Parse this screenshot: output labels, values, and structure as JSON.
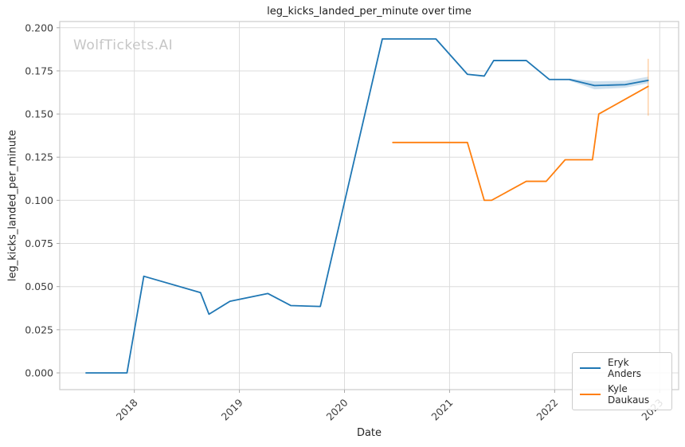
{
  "title": "leg_kicks_landed_per_minute over time",
  "watermark": "WolfTickets.AI",
  "legend": {
    "items": [
      {
        "label": "Eryk Anders",
        "color": "#1f77b4"
      },
      {
        "label": "Kyle Daukaus",
        "color": "#ff7f0e"
      }
    ]
  },
  "colors": {
    "grid": "#dcdcdc",
    "spine": "#cccccc",
    "tick": "#aaaaaa",
    "tick_label": "#3d3d3d",
    "background": "#ffffff"
  },
  "chart_data": {
    "type": "line",
    "title": "leg_kicks_landed_per_minute over time",
    "xlabel": "Date",
    "ylabel": "leg_kicks_landed_per_minute",
    "grid": true,
    "legend_position": "lower right",
    "xlim": [
      2017.29,
      2023.18
    ],
    "ylim": [
      -0.0097,
      0.2036
    ],
    "x_ticks": [
      2018,
      2019,
      2020,
      2021,
      2022,
      2023
    ],
    "y_ticks": [
      0.0,
      0.025,
      0.05,
      0.075,
      0.1,
      0.125,
      0.15,
      0.175,
      0.2
    ],
    "series": [
      {
        "name": "Eryk Anders",
        "color": "#1f77b4",
        "points": [
          [
            2017.54,
            0.0
          ],
          [
            2017.93,
            0.0
          ],
          [
            2018.09,
            0.056
          ],
          [
            2018.63,
            0.0465
          ],
          [
            2018.71,
            0.034
          ],
          [
            2018.91,
            0.0415
          ],
          [
            2019.27,
            0.046
          ],
          [
            2019.49,
            0.039
          ],
          [
            2019.77,
            0.0385
          ],
          [
            2020.36,
            0.1935
          ],
          [
            2020.87,
            0.1935
          ],
          [
            2021.17,
            0.173
          ],
          [
            2021.33,
            0.172
          ],
          [
            2021.42,
            0.181
          ],
          [
            2021.73,
            0.181
          ],
          [
            2021.95,
            0.17
          ],
          [
            2022.14,
            0.17
          ],
          [
            2022.38,
            0.1665
          ],
          [
            2022.67,
            0.167
          ],
          [
            2022.89,
            0.1695
          ]
        ],
        "ci_band": {
          "x": [
            2022.14,
            2022.38,
            2022.67,
            2022.89
          ],
          "upper": [
            0.1706,
            0.169,
            0.1692,
            0.1716
          ],
          "lower": [
            0.1694,
            0.1643,
            0.1652,
            0.1678
          ]
        }
      },
      {
        "name": "Kyle Daukaus",
        "color": "#ff7f0e",
        "points": [
          [
            2020.46,
            0.1335
          ],
          [
            2021.17,
            0.1335
          ],
          [
            2021.33,
            0.1
          ],
          [
            2021.4,
            0.1
          ],
          [
            2021.73,
            0.111
          ],
          [
            2021.92,
            0.111
          ],
          [
            2022.1,
            0.1235
          ],
          [
            2022.36,
            0.1235
          ],
          [
            2022.42,
            0.15
          ],
          [
            2022.89,
            0.166
          ]
        ],
        "error_bar": {
          "x": 2022.89,
          "low": 0.149,
          "high": 0.182
        }
      }
    ]
  }
}
